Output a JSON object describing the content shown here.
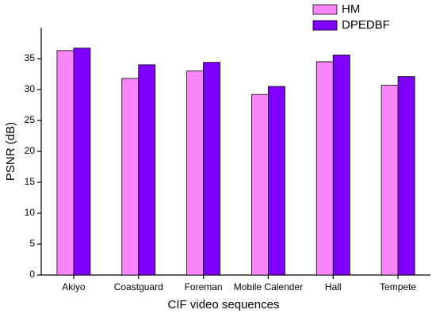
{
  "chart_data": {
    "type": "bar",
    "x_label": "CIF video sequences",
    "y_label": "PSNR (dB)",
    "categories": [
      "Akiyo",
      "Coastguard",
      "Foreman",
      "Mobile Calender",
      "Hall",
      "Tempete"
    ],
    "series": [
      {
        "name": "HM",
        "color": "#f986f9",
        "values": [
          36.3,
          31.8,
          33.0,
          29.2,
          34.5,
          30.7
        ]
      },
      {
        "name": "DPEDBF",
        "color": "#8000ff",
        "values": [
          36.7,
          34.0,
          34.4,
          30.5,
          35.6,
          32.1
        ]
      }
    ],
    "ylim": [
      0,
      40
    ],
    "yticks": [
      0,
      5,
      10,
      15,
      20,
      25,
      30,
      35
    ],
    "legend": "top-right"
  }
}
